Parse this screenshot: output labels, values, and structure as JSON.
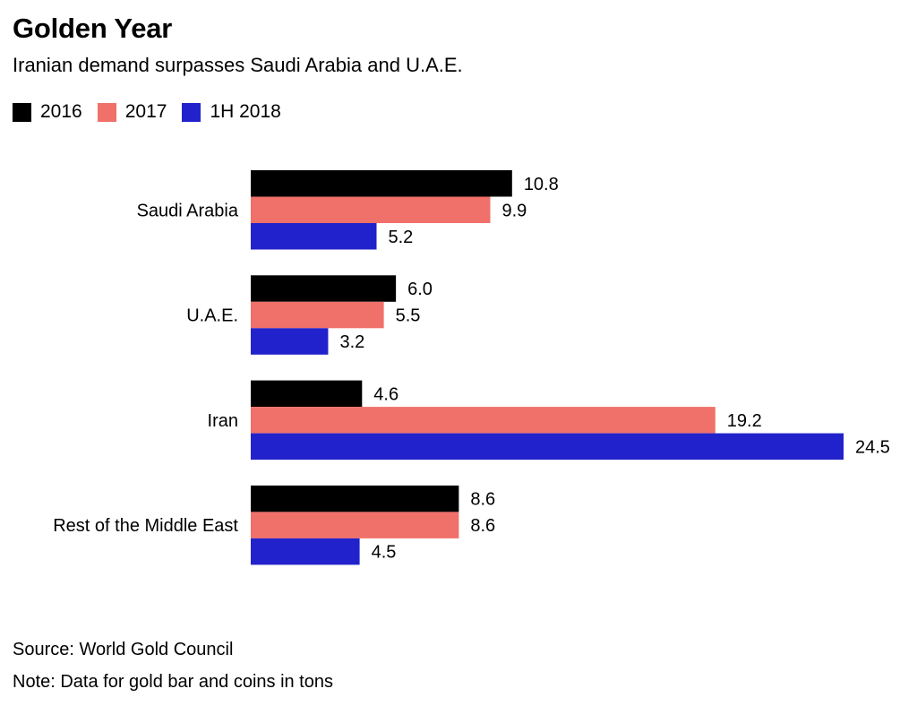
{
  "title": "Golden Year",
  "subtitle": "Iranian demand surpasses Saudi Arabia and U.A.E.",
  "source": "Source: World Gold Council",
  "note": "Note: Data for gold bar and coins in tons",
  "colors": {
    "2016": "#000000",
    "2017": "#f0706a",
    "1H 2018": "#2222cc"
  },
  "chart_data": {
    "type": "bar",
    "orientation": "horizontal",
    "categories": [
      "Saudi Arabia",
      "U.A.E.",
      "Iran",
      "Rest of the Middle East"
    ],
    "series": [
      {
        "name": "2016",
        "values": [
          10.8,
          6.0,
          4.6,
          8.6
        ],
        "labels": [
          "10.8",
          "6.0",
          "4.6",
          "8.6"
        ]
      },
      {
        "name": "2017",
        "values": [
          9.9,
          5.5,
          19.2,
          8.6
        ],
        "labels": [
          "9.9",
          "5.5",
          "19.2",
          "8.6"
        ]
      },
      {
        "name": "1H 2018",
        "values": [
          5.2,
          3.2,
          24.5,
          4.5
        ],
        "labels": [
          "5.2",
          "3.2",
          "24.5",
          "4.5"
        ]
      }
    ],
    "xlim": [
      0,
      24.5
    ],
    "legend": "top-left",
    "grid": false,
    "data_labels": true
  }
}
